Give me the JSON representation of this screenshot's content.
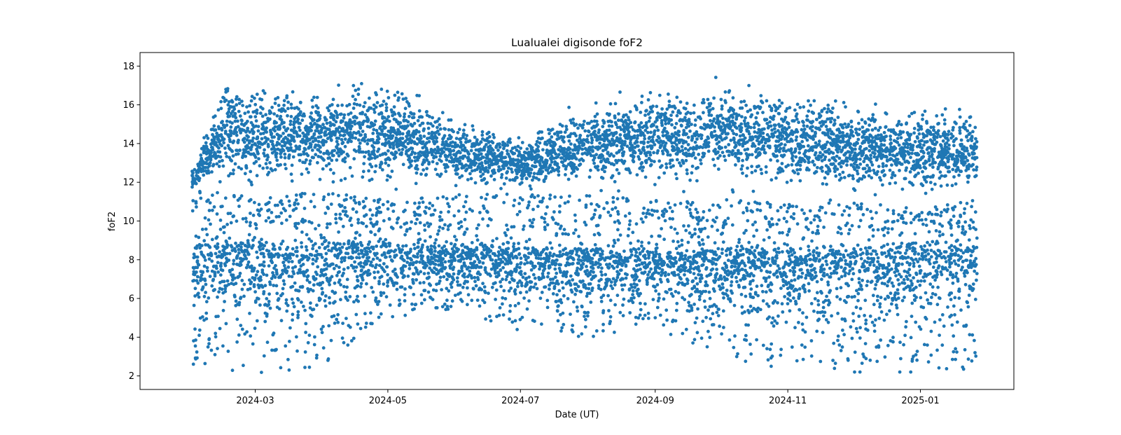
{
  "chart_data": {
    "type": "scatter",
    "title": "Lualualei digisonde foF2",
    "xlabel": "Date (UT)",
    "ylabel": "foF2",
    "xlim": [
      "2024-01-08",
      "2025-02-13"
    ],
    "ylim": [
      1.3,
      18.7
    ],
    "x_ticks": [
      "2024-03",
      "2024-05",
      "2024-07",
      "2024-09",
      "2024-11",
      "2025-01"
    ],
    "y_ticks": [
      2,
      4,
      6,
      8,
      10,
      12,
      14,
      16,
      18
    ],
    "grid": false,
    "legend": "none",
    "marker_color": "#1f77b4",
    "series": [
      {
        "date_range": [
          "2024-02-01",
          "2025-01-27"
        ],
        "envelope": [
          {
            "date": "2024-02-01",
            "lower_band": [
              2.5,
              9.5
            ],
            "upper_band": [
              10.5,
              13.0
            ]
          },
          {
            "date": "2024-02-15",
            "lower_band": [
              2.3,
              9.7
            ],
            "upper_band": [
              11.0,
              17.5
            ]
          },
          {
            "date": "2024-03-01",
            "lower_band": [
              2.1,
              9.6
            ],
            "upper_band": [
              10.5,
              17.7
            ]
          },
          {
            "date": "2024-04-01",
            "lower_band": [
              2.5,
              9.6
            ],
            "upper_band": [
              11.0,
              17.3
            ]
          },
          {
            "date": "2024-05-01",
            "lower_band": [
              5.0,
              9.6
            ],
            "upper_band": [
              10.5,
              18.0
            ]
          },
          {
            "date": "2024-06-01",
            "lower_band": [
              5.5,
              9.4
            ],
            "upper_band": [
              10.8,
              15.8
            ]
          },
          {
            "date": "2024-07-01",
            "lower_band": [
              4.3,
              9.4
            ],
            "upper_band": [
              10.8,
              14.5
            ]
          },
          {
            "date": "2024-08-01",
            "lower_band": [
              4.0,
              9.3
            ],
            "upper_band": [
              10.7,
              16.5
            ]
          },
          {
            "date": "2024-09-01",
            "lower_band": [
              4.5,
              9.2
            ],
            "upper_band": [
              10.5,
              17.7
            ]
          },
          {
            "date": "2024-10-01",
            "lower_band": [
              3.0,
              9.3
            ],
            "upper_band": [
              10.5,
              17.9
            ]
          },
          {
            "date": "2024-11-01",
            "lower_band": [
              2.3,
              9.4
            ],
            "upper_band": [
              10.5,
              17.3
            ]
          },
          {
            "date": "2024-12-01",
            "lower_band": [
              2.2,
              9.3
            ],
            "upper_band": [
              10.5,
              16.5
            ]
          },
          {
            "date": "2025-01-01",
            "lower_band": [
              2.2,
              9.8
            ],
            "upper_band": [
              10.0,
              16.5
            ]
          },
          {
            "date": "2025-01-27",
            "lower_band": [
              2.2,
              9.5
            ],
            "upper_band": [
              10.5,
              16.0
            ]
          }
        ]
      }
    ]
  }
}
